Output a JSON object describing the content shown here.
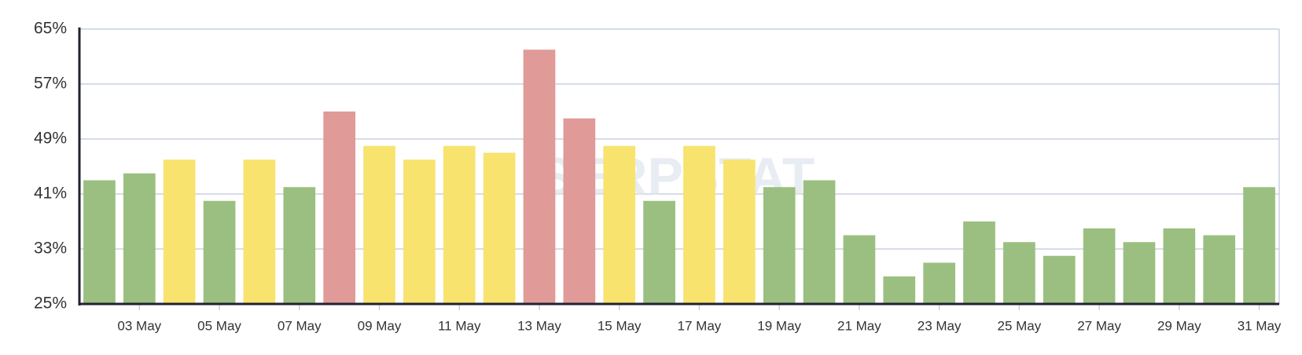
{
  "chart_data": {
    "type": "bar",
    "watermark": "SERPSTAT",
    "categories": [
      null,
      "03 May",
      null,
      "05 May",
      null,
      "07 May",
      null,
      "09 May",
      null,
      "11 May",
      null,
      "13 May",
      null,
      "15 May",
      null,
      "17 May",
      null,
      "19 May",
      null,
      "21 May",
      null,
      "23 May",
      null,
      "25 May",
      null,
      "27 May",
      null,
      "29 May",
      null,
      "31 May"
    ],
    "values": [
      43,
      44,
      46,
      40,
      46,
      42,
      53,
      48,
      46,
      48,
      47,
      62,
      52,
      48,
      40,
      48,
      46,
      42,
      43,
      35,
      29,
      31,
      37,
      34,
      32,
      36,
      34,
      36,
      35,
      42
    ],
    "colors": [
      "#9bbf80",
      "#9bbf80",
      "#f8e36f",
      "#9bbf80",
      "#f8e36f",
      "#9bbf80",
      "#e09a98",
      "#f8e36f",
      "#f8e36f",
      "#f8e36f",
      "#f8e36f",
      "#e09a98",
      "#e09a98",
      "#f8e36f",
      "#9bbf80",
      "#f8e36f",
      "#f8e36f",
      "#9bbf80",
      "#9bbf80",
      "#9bbf80",
      "#9bbf80",
      "#9bbf80",
      "#9bbf80",
      "#9bbf80",
      "#9bbf80",
      "#9bbf80",
      "#9bbf80",
      "#9bbf80",
      "#9bbf80",
      "#9bbf80"
    ],
    "ylim": [
      25,
      65
    ],
    "yticks": [
      {
        "value": 25,
        "label": "25%"
      },
      {
        "value": 33,
        "label": "33%"
      },
      {
        "value": 41,
        "label": "41%"
      },
      {
        "value": 49,
        "label": "49%"
      },
      {
        "value": 57,
        "label": "57%"
      },
      {
        "value": 65,
        "label": "65%"
      }
    ],
    "grid": true
  }
}
